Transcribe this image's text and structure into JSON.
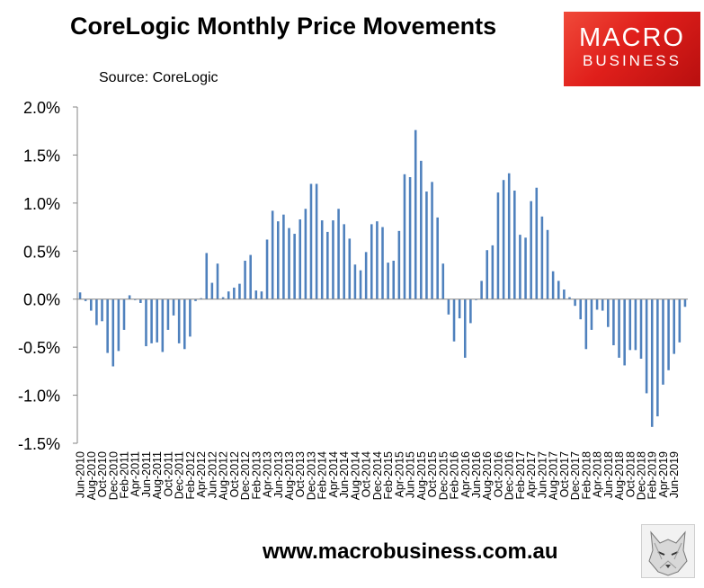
{
  "title": "CoreLogic Monthly Price Movements",
  "source": "Source: CoreLogic",
  "logo": {
    "line1": "MACRO",
    "line2": "BUSINESS"
  },
  "footer": "www.macrobusiness.com.au",
  "colors": {
    "bar": "#4f81bd",
    "axis": "#868686",
    "logo": "#e2231a"
  },
  "chart_data": {
    "type": "bar",
    "title": "CoreLogic Monthly Price Movements",
    "ylim": [
      -1.5,
      2.0
    ],
    "yticks": [
      2.0,
      1.5,
      1.0,
      0.5,
      0.0,
      -0.5,
      -1.0,
      -1.5
    ],
    "ytick_labels": [
      "2.0%",
      "1.5%",
      "1.0%",
      "0.5%",
      "0.0%",
      "-0.5%",
      "-1.0%",
      "-1.5%"
    ],
    "xtick_labels": [
      "Jun-2010",
      "Aug-2010",
      "Oct-2010",
      "Dec-2010",
      "Feb-2011",
      "Apr-2011",
      "Jun-2011",
      "Aug-2011",
      "Oct-2011",
      "Dec-2011",
      "Feb-2012",
      "Apr-2012",
      "Jun-2012",
      "Aug-2012",
      "Oct-2012",
      "Dec-2012",
      "Feb-2013",
      "Apr-2013",
      "Jun-2013",
      "Aug-2013",
      "Oct-2013",
      "Dec-2013",
      "Feb-2014",
      "Apr-2014",
      "Jun-2014",
      "Aug-2014",
      "Oct-2014",
      "Dec-2014",
      "Feb-2015",
      "Apr-2015",
      "Jun-2015",
      "Aug-2015",
      "Oct-2015",
      "Dec-2015",
      "Feb-2016",
      "Apr-2016",
      "Jun-2016",
      "Aug-2016",
      "Oct-2016",
      "Dec-2016",
      "Feb-2017",
      "Apr-2017",
      "Jun-2017",
      "Aug-2017",
      "Oct-2017",
      "Dec-2017",
      "Feb-2018",
      "Apr-2018",
      "Jun-2018",
      "Aug-2018",
      "Oct-2018",
      "Dec-2018",
      "Feb-2019",
      "Apr-2019",
      "Jun-2019"
    ],
    "grid": false,
    "series": [
      {
        "values": [
          0.07,
          -0.02,
          -0.12,
          -0.27,
          -0.23,
          -0.56,
          -0.7,
          -0.54,
          -0.32,
          0.04,
          -0.01,
          -0.04,
          -0.49,
          -0.46,
          -0.45,
          -0.55,
          -0.32,
          -0.17,
          -0.46,
          -0.52,
          -0.39,
          -0.02,
          0.01,
          0.48,
          0.17,
          0.37,
          0.02,
          0.08,
          0.12,
          0.16,
          0.4,
          0.46,
          0.09,
          0.08,
          0.62,
          0.92,
          0.81,
          0.88,
          0.74,
          0.68,
          0.83,
          0.94,
          1.2,
          1.2,
          0.82,
          0.7,
          0.82,
          0.94,
          0.78,
          0.63,
          0.36,
          0.3,
          0.49,
          0.78,
          0.81,
          0.75,
          0.38,
          0.4,
          0.71,
          1.3,
          1.27,
          1.76,
          1.44,
          1.12,
          1.22,
          0.85,
          0.37,
          -0.16,
          -0.44,
          -0.2,
          -0.61,
          -0.25,
          -0.01,
          0.19,
          0.51,
          0.56,
          1.11,
          1.24,
          1.31,
          1.13,
          0.67,
          0.64,
          1.02,
          1.16,
          0.86,
          0.72,
          0.29,
          0.19,
          0.1,
          0.02,
          -0.07,
          -0.21,
          -0.52,
          -0.32,
          -0.11,
          -0.12,
          -0.29,
          -0.48,
          -0.61,
          -0.69,
          -0.53,
          -0.53,
          -0.62,
          -0.98,
          -1.33,
          -1.22,
          -0.89,
          -0.74,
          -0.57,
          -0.45,
          -0.08
        ]
      }
    ]
  }
}
